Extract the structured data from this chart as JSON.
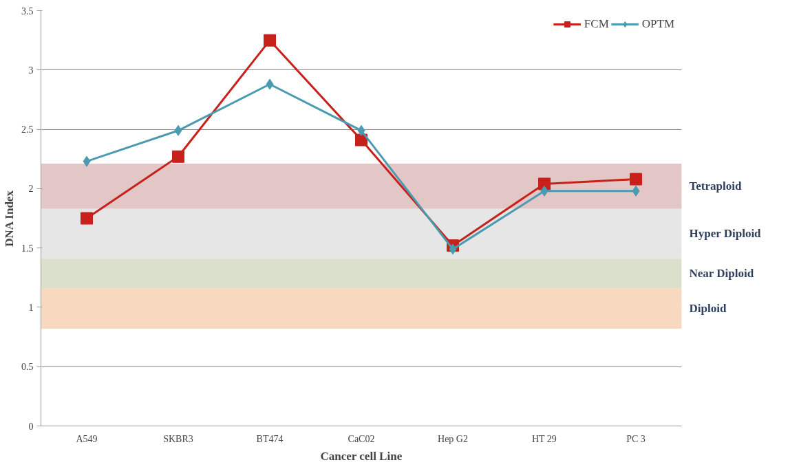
{
  "chart_data": {
    "type": "line",
    "xlabel": "Cancer cell Line",
    "ylabel": "DNA Index",
    "categories": [
      "A549",
      "SKBR3",
      "BT474",
      "CaC02",
      "Hep G2",
      "HT 29",
      "PC 3"
    ],
    "series": [
      {
        "name": "FCM",
        "color": "#c8201a",
        "marker": "square",
        "values": [
          1.75,
          2.27,
          3.25,
          2.41,
          1.52,
          2.04,
          2.08
        ]
      },
      {
        "name": "OPTM",
        "color": "#4a9bb0",
        "marker": "diamond",
        "values": [
          2.23,
          2.49,
          2.88,
          2.49,
          1.49,
          1.98,
          1.98
        ]
      }
    ],
    "ylim": [
      0,
      3.5
    ],
    "yticks": [
      0,
      0.5,
      1,
      1.5,
      2,
      2.5,
      3,
      3.5
    ],
    "bands": [
      {
        "axis": "y",
        "from": 1.83,
        "to": 2.21,
        "label": "Tetraploid",
        "color": "#e3c6c6"
      },
      {
        "axis": "y",
        "from": 1.41,
        "to": 1.83,
        "label": "Hyper Diploid",
        "color": "#e6e6e6"
      },
      {
        "axis": "y",
        "from": 1.16,
        "to": 1.41,
        "label": "Near Diploid",
        "color": "#dbe0cc"
      },
      {
        "axis": "y",
        "from": 0.82,
        "to": 1.16,
        "label": "Diploid",
        "color": "#f8d8be"
      }
    ],
    "grid": "y",
    "legend": "top right",
    "line_style": "solid"
  }
}
